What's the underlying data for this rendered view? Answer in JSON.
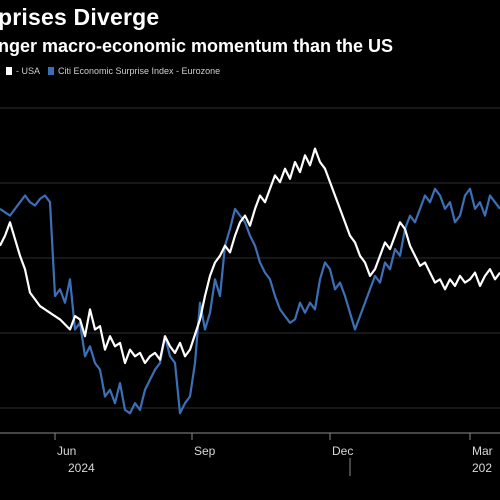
{
  "header": {
    "title": "prises Diverge",
    "subtitle": "nger macro-economic momentum than the US"
  },
  "legend": {
    "items": [
      {
        "label": "- USA",
        "color": "#ffffff"
      },
      {
        "label": "Citi Economic Surprise Index - Eurozone",
        "color": "#3d6fb6"
      }
    ]
  },
  "chart_data": {
    "type": "line",
    "title": "prises Diverge",
    "subtitle": "nger macro-economic momentum than the US",
    "x_ticks": [
      "Jun",
      "Sep",
      "Dec",
      "Mar"
    ],
    "x_year_labels": [
      "2024",
      "202"
    ],
    "grid": "horizontal",
    "ylim": [
      0,
      100
    ],
    "xlim": [
      0,
      100
    ],
    "series": [
      {
        "name": "USA",
        "color": "#ffffff",
        "x": [
          0,
          1,
          2,
          3,
          4,
          5,
          6,
          8,
          10,
          12,
          14,
          15,
          16,
          17,
          18,
          19,
          20,
          21,
          22,
          23,
          24,
          25,
          26,
          27,
          28,
          29,
          30,
          31,
          32,
          33,
          34,
          35,
          36,
          37,
          38,
          40,
          41,
          42,
          43,
          44,
          45,
          46,
          47,
          48,
          49,
          50,
          51,
          52,
          53,
          54,
          55,
          56,
          57,
          58,
          59,
          60,
          61,
          62,
          63,
          64,
          65,
          66,
          67,
          68,
          69,
          70,
          71,
          72,
          73,
          74,
          75,
          76,
          77,
          78,
          79,
          80,
          81,
          82,
          83,
          84,
          85,
          86,
          87,
          88,
          89,
          90,
          91,
          92,
          93,
          94,
          95,
          96,
          97,
          98,
          99,
          100
        ],
        "values": [
          55,
          58,
          62,
          57,
          52,
          48,
          41,
          37,
          35,
          33,
          30,
          34,
          33,
          28,
          36,
          30,
          31,
          24,
          28,
          25,
          26,
          20,
          24,
          22,
          23,
          20,
          22,
          23,
          21,
          28,
          25,
          23,
          26,
          22,
          24,
          33,
          40,
          46,
          50,
          52,
          55,
          53,
          58,
          62,
          64,
          61,
          66,
          70,
          68,
          72,
          76,
          74,
          78,
          75,
          80,
          77,
          82,
          79,
          84,
          80,
          78,
          74,
          70,
          66,
          62,
          58,
          56,
          52,
          50,
          46,
          48,
          52,
          56,
          54,
          58,
          62,
          60,
          55,
          52,
          49,
          50,
          47,
          44,
          45,
          42,
          45,
          43,
          46,
          44,
          45,
          47,
          43,
          46,
          48,
          45,
          47
        ]
      },
      {
        "name": "Citi Economic Surprise Index - Eurozone",
        "color": "#3d6fb6",
        "x": [
          0,
          1,
          2,
          3,
          4,
          5,
          6,
          7,
          8,
          9,
          10,
          11,
          12,
          13,
          14,
          15,
          16,
          17,
          18,
          19,
          20,
          21,
          22,
          23,
          24,
          25,
          26,
          27,
          28,
          29,
          30,
          31,
          32,
          33,
          34,
          35,
          36,
          37,
          38,
          39,
          40,
          41,
          42,
          43,
          44,
          45,
          46,
          47,
          48,
          49,
          50,
          51,
          52,
          53,
          54,
          55,
          56,
          57,
          58,
          59,
          60,
          61,
          62,
          63,
          64,
          65,
          66,
          67,
          68,
          69,
          70,
          71,
          72,
          73,
          74,
          75,
          76,
          77,
          78,
          79,
          80,
          81,
          82,
          83,
          84,
          85,
          86,
          87,
          88,
          89,
          90,
          91,
          92,
          93,
          94,
          95,
          96,
          97,
          98,
          99,
          100
        ],
        "values": [
          66,
          65,
          64,
          66,
          68,
          70,
          68,
          67,
          69,
          70,
          68,
          40,
          42,
          38,
          45,
          30,
          32,
          22,
          25,
          20,
          18,
          10,
          12,
          8,
          14,
          6,
          5,
          8,
          6,
          12,
          15,
          18,
          20,
          28,
          22,
          20,
          5,
          8,
          10,
          20,
          38,
          30,
          35,
          45,
          40,
          55,
          60,
          66,
          64,
          62,
          58,
          55,
          50,
          47,
          45,
          40,
          36,
          34,
          32,
          33,
          38,
          35,
          38,
          36,
          45,
          50,
          48,
          42,
          44,
          40,
          35,
          30,
          34,
          38,
          42,
          46,
          44,
          50,
          48,
          54,
          52,
          60,
          64,
          62,
          66,
          70,
          68,
          72,
          70,
          66,
          68,
          62,
          64,
          70,
          72,
          66,
          68,
          64,
          70,
          68,
          66
        ]
      }
    ]
  }
}
